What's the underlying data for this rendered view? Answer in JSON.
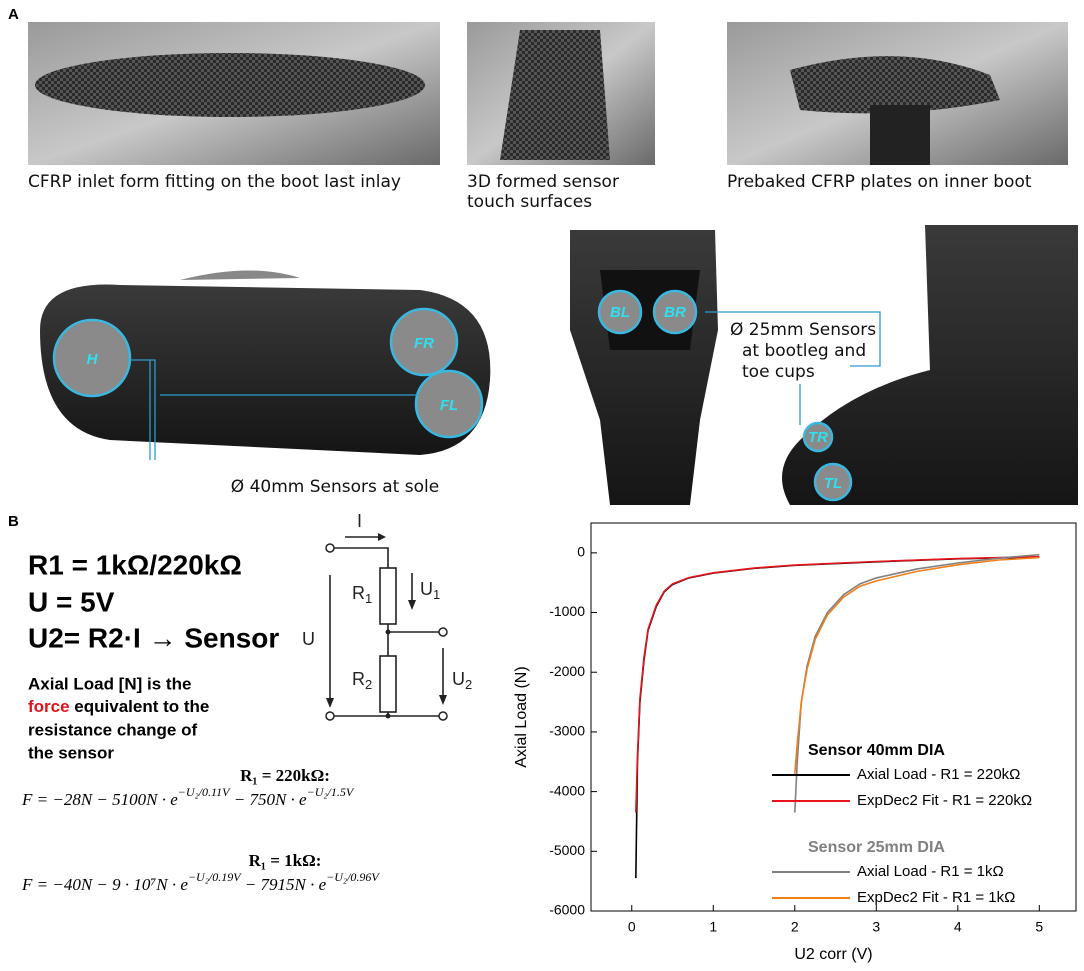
{
  "panel_labels": [
    "A",
    "B"
  ],
  "photos": {
    "captions": [
      [
        "CFRP inlet form fitting on the boot last inlay"
      ],
      [
        "3D formed sensor",
        "touch surfaces"
      ],
      [
        "Prebaked CFRP plates on inner boot"
      ]
    ],
    "sole_sensor_labels": [
      "H",
      "FR",
      "FL"
    ],
    "sole_caption": "Ø 40mm Sensors at sole",
    "boot_sensor_labels": [
      "BL",
      "BR",
      "TR",
      "TL"
    ],
    "boot_caption": [
      "Ø 25mm Sensors",
      "at bootleg and",
      "toe cups"
    ]
  },
  "circuit": {
    "params": [
      "R1 = 1kΩ/220kΩ",
      "U = 5V",
      "U2= R2·I → Sensor"
    ],
    "labels": [
      {
        "text": "I"
      },
      {
        "text": "R",
        "sub": "1"
      },
      {
        "text": "U",
        "sub": "1"
      },
      {
        "text": "U"
      },
      {
        "text": "R",
        "sub": "2"
      },
      {
        "text": "U",
        "sub": "2"
      }
    ],
    "description": [
      "Axial Load [N] is the",
      {
        "highlight": "force",
        "rest": " equivalent to the"
      },
      "resistance change of",
      "the sensor"
    ],
    "formulas": [
      {
        "condition": "R₁ = 220kΩ:",
        "parts": [
          "F = −28N − 5100N · e",
          "−U₂/0.11V",
          " − 750N · e",
          "−U₂/1.5V"
        ]
      },
      {
        "condition": "R₁ = 1kΩ:",
        "parts": [
          "F = −40N − 9 · 10⁷N · e",
          "−U₂/0.19V",
          " − 7915N · e",
          "−U₂/0.96V"
        ]
      }
    ]
  },
  "chart_data": {
    "type": "line",
    "x_label": "U2 corr (V)",
    "y_label": "Axial Load (N)",
    "xlim": [
      -0.5,
      5.45
    ],
    "ylim": [
      -6000,
      500
    ],
    "xticks": [
      0,
      1,
      2,
      3,
      4,
      5
    ],
    "yticks": [
      0,
      -1000,
      -2000,
      -3000,
      -4000,
      -5000,
      -6000
    ],
    "legend_titles": [
      {
        "text": "Sensor 40mm DIA",
        "color": "#000000"
      },
      {
        "text": "Sensor 25mm DIA",
        "color": "#808080"
      }
    ],
    "series": [
      {
        "name": "Axial Load - R1 = 220kΩ",
        "color": "#000000",
        "x": [
          0.05,
          0.07,
          0.1,
          0.15,
          0.2,
          0.3,
          0.4,
          0.5,
          0.7,
          1,
          1.5,
          2,
          3,
          4,
          5
        ],
        "values": [
          -5450,
          -3500,
          -2500,
          -1800,
          -1300,
          -900,
          -650,
          -530,
          -420,
          -340,
          -260,
          -210,
          -150,
          -100,
          -70
        ]
      },
      {
        "name": "ExpDec2 Fit - R1 = 220kΩ",
        "color": "#e8131b",
        "x": [
          0.05,
          0.07,
          0.1,
          0.15,
          0.2,
          0.3,
          0.4,
          0.5,
          0.7,
          1,
          1.5,
          2,
          3,
          4,
          5
        ],
        "values": [
          -4350,
          -3400,
          -2450,
          -1750,
          -1280,
          -880,
          -640,
          -520,
          -415,
          -335,
          -255,
          -205,
          -145,
          -95,
          -65
        ]
      },
      {
        "name": "Axial Load - R1 = 1kΩ",
        "color": "#808080",
        "x": [
          2,
          2.03,
          2.08,
          2.15,
          2.25,
          2.4,
          2.6,
          2.8,
          3,
          3.5,
          4,
          4.5,
          5
        ],
        "values": [
          -4350,
          -3500,
          -2500,
          -1900,
          -1400,
          -1000,
          -700,
          -520,
          -420,
          -270,
          -170,
          -90,
          -30
        ]
      },
      {
        "name": "ExpDec2 Fit - R1 = 1kΩ",
        "color": "#f07f1a",
        "x": [
          2,
          2.03,
          2.08,
          2.15,
          2.25,
          2.4,
          2.6,
          2.8,
          3,
          3.5,
          4,
          4.5,
          5
        ],
        "values": [
          -3700,
          -3200,
          -2500,
          -1950,
          -1450,
          -1040,
          -740,
          -560,
          -470,
          -310,
          -200,
          -120,
          -80
        ]
      }
    ]
  }
}
